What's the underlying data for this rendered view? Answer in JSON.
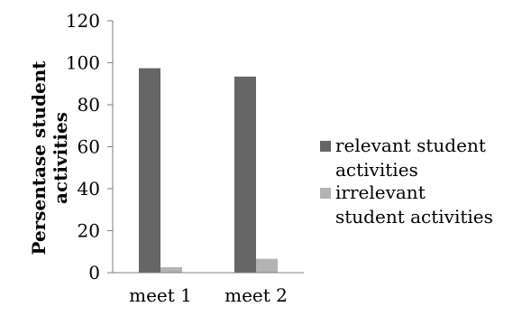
{
  "chart_data": {
    "type": "bar",
    "categories": [
      "meet 1",
      "meet 2"
    ],
    "series": [
      {
        "name": "relevant student activities",
        "legend_lines": [
          "relevant student",
          "activities"
        ],
        "values": [
          97.4,
          93.4
        ],
        "color": "#666666"
      },
      {
        "name": "irrelevant student activities",
        "legend_lines": [
          "irrelevant",
          "student activities"
        ],
        "values": [
          2.6,
          6.6
        ],
        "color": "#b3b3b3"
      }
    ],
    "title": "",
    "xlabel": "",
    "ylabel_lines": [
      "Persentase student",
      "activities"
    ],
    "ylim": [
      0,
      120
    ],
    "yticks": [
      0,
      20,
      40,
      60,
      80,
      100,
      120
    ],
    "grid": false,
    "legend_position": "right"
  }
}
